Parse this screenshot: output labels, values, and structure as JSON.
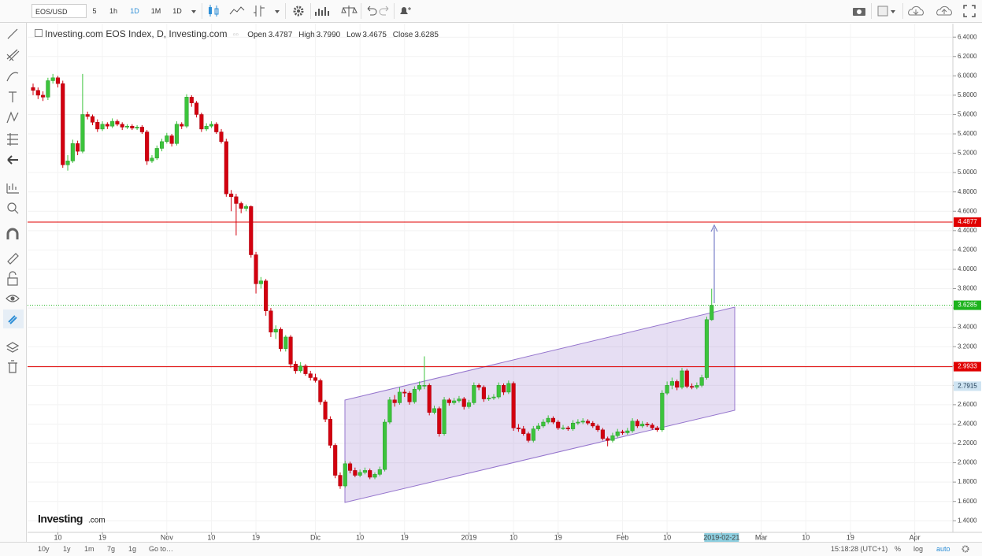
{
  "toolbar": {
    "symbol": "EOS/USD",
    "intervals": [
      "5",
      "1h",
      "1D",
      "1M",
      "1D"
    ]
  },
  "chart_data": {
    "type": "candlestick",
    "title": "Investing.com EOS Index, D, Investing.com",
    "ohlc_legend": [
      {
        "name": "Open",
        "value": "3.4787"
      },
      {
        "name": "High",
        "value": "3.7990"
      },
      {
        "name": "Low",
        "value": "3.4675"
      },
      {
        "name": "Close",
        "value": "3.6285"
      }
    ],
    "watermark": [
      "Investing",
      ".com"
    ],
    "up_color": "#3cc43c",
    "down_color": "#d3000f",
    "grid": true,
    "ylim": [
      1.28,
      6.54
    ],
    "yticks": [
      {
        "value": 1.4,
        "label": "1.4000"
      },
      {
        "value": 1.6,
        "label": "1.6000"
      },
      {
        "value": 1.8,
        "label": "1.8000"
      },
      {
        "value": 2.0,
        "label": "2.0000"
      },
      {
        "value": 2.2,
        "label": "2.2000"
      },
      {
        "value": 2.4,
        "label": "2.4000"
      },
      {
        "value": 2.6,
        "label": "2.6000"
      },
      {
        "value": 2.8,
        "label": "2.8000"
      },
      {
        "value": 3.0,
        "label": "3.0000"
      },
      {
        "value": 3.2,
        "label": "3.2000"
      },
      {
        "value": 3.4,
        "label": "3.4000"
      },
      {
        "value": 3.6,
        "label": "3.6000"
      },
      {
        "value": 3.8,
        "label": "3.8000"
      },
      {
        "value": 4.0,
        "label": "4.0000"
      },
      {
        "value": 4.2,
        "label": "4.2000"
      },
      {
        "value": 4.4,
        "label": "4.4000"
      },
      {
        "value": 4.6,
        "label": "4.6000"
      },
      {
        "value": 4.8,
        "label": "4.8000"
      },
      {
        "value": 5.0,
        "label": "5.0000"
      },
      {
        "value": 5.2,
        "label": "5.2000"
      },
      {
        "value": 5.4,
        "label": "5.4000"
      },
      {
        "value": 5.6,
        "label": "5.6000"
      },
      {
        "value": 5.8,
        "label": "5.8000"
      },
      {
        "value": 6.0,
        "label": "6.0000"
      },
      {
        "value": 6.2,
        "label": "6.2000"
      },
      {
        "value": 6.4,
        "label": "6.4000"
      }
    ],
    "price_lines": [
      {
        "value": 4.4877,
        "color": "#e00000",
        "line": "solid"
      },
      {
        "value": 3.6285,
        "color": "#1db31d",
        "line": "dotted"
      },
      {
        "value": 2.9933,
        "color": "#e00000",
        "line": "solid"
      },
      {
        "value": 2.7915,
        "color": "#cfe4f2",
        "line": "none"
      }
    ],
    "categories": [
      null,
      null,
      null,
      null,
      null,
      "10",
      null,
      null,
      null,
      null,
      null,
      null,
      null,
      null,
      "19",
      null,
      null,
      null,
      null,
      null,
      null,
      null,
      null,
      null,
      null,
      null,
      null,
      "Nov",
      null,
      null,
      null,
      null,
      null,
      null,
      null,
      null,
      "10",
      null,
      null,
      null,
      null,
      null,
      null,
      null,
      null,
      "19",
      null,
      null,
      null,
      null,
      null,
      null,
      null,
      null,
      null,
      null,
      null,
      "Dic",
      null,
      null,
      null,
      null,
      null,
      null,
      null,
      null,
      "10",
      null,
      null,
      null,
      null,
      null,
      null,
      null,
      null,
      "19",
      null,
      null,
      null,
      null,
      null,
      null,
      null,
      null,
      null,
      null,
      null,
      null,
      "2019",
      null,
      null,
      null,
      null,
      null,
      null,
      null,
      null,
      "10",
      null,
      null,
      null,
      null,
      null,
      null,
      null,
      null,
      "19",
      null,
      null,
      null,
      null,
      null,
      null,
      null,
      null,
      null,
      null,
      null,
      null,
      "Feb",
      null,
      null,
      null,
      null,
      null,
      null,
      null,
      null,
      "10",
      null,
      null,
      null,
      null,
      null,
      null,
      null,
      null,
      null,
      null,
      "2019-02-21",
      null,
      null,
      null,
      null,
      null,
      null,
      null,
      "Mar",
      null,
      null,
      null,
      null,
      null,
      null,
      null,
      null,
      "10",
      null,
      null,
      null,
      null,
      null,
      null,
      null,
      null,
      "19",
      null,
      null,
      null,
      null,
      null,
      null,
      null,
      null,
      null,
      null,
      null,
      null,
      "Apr",
      null,
      null,
      null,
      null,
      null,
      null,
      null,
      null
    ],
    "candles": [
      [
        5.88,
        5.92,
        5.8,
        5.85
      ],
      [
        5.85,
        5.88,
        5.76,
        5.8
      ],
      [
        5.8,
        5.84,
        5.74,
        5.78
      ],
      [
        5.78,
        5.98,
        5.75,
        5.95
      ],
      [
        5.95,
        6.02,
        5.92,
        5.98
      ],
      [
        5.98,
        6.0,
        5.88,
        5.92
      ],
      [
        5.92,
        5.95,
        5.05,
        5.08
      ],
      [
        5.08,
        5.18,
        5.02,
        5.12
      ],
      [
        5.12,
        5.34,
        5.1,
        5.3
      ],
      [
        5.3,
        5.33,
        5.18,
        5.22
      ],
      [
        5.22,
        6.02,
        5.2,
        5.6
      ],
      [
        5.6,
        5.63,
        5.55,
        5.58
      ],
      [
        5.58,
        5.6,
        5.49,
        5.52
      ],
      [
        5.52,
        5.55,
        5.42,
        5.45
      ],
      [
        5.45,
        5.53,
        5.43,
        5.5
      ],
      [
        5.5,
        5.52,
        5.45,
        5.48
      ],
      [
        5.48,
        5.56,
        5.46,
        5.53
      ],
      [
        5.53,
        5.55,
        5.48,
        5.5
      ],
      [
        5.5,
        5.52,
        5.44,
        5.47
      ],
      [
        5.47,
        5.5,
        5.45,
        5.48
      ],
      [
        5.48,
        5.5,
        5.44,
        5.46
      ],
      [
        5.46,
        5.49,
        5.44,
        5.47
      ],
      [
        5.47,
        5.49,
        5.4,
        5.42
      ],
      [
        5.42,
        5.44,
        5.08,
        5.12
      ],
      [
        5.12,
        5.18,
        5.1,
        5.15
      ],
      [
        5.15,
        5.28,
        5.13,
        5.25
      ],
      [
        5.25,
        5.35,
        5.22,
        5.32
      ],
      [
        5.32,
        5.41,
        5.3,
        5.38
      ],
      [
        5.38,
        5.4,
        5.27,
        5.3
      ],
      [
        5.3,
        5.53,
        5.28,
        5.5
      ],
      [
        5.5,
        5.52,
        5.45,
        5.48
      ],
      [
        5.48,
        5.81,
        5.46,
        5.78
      ],
      [
        5.78,
        5.8,
        5.68,
        5.72
      ],
      [
        5.72,
        5.74,
        5.57,
        5.6
      ],
      [
        5.6,
        5.62,
        5.42,
        5.45
      ],
      [
        5.45,
        5.51,
        5.43,
        5.48
      ],
      [
        5.48,
        5.53,
        5.46,
        5.5
      ],
      [
        5.5,
        5.52,
        5.4,
        5.42
      ],
      [
        5.42,
        5.45,
        5.3,
        5.32
      ],
      [
        5.32,
        5.35,
        4.75,
        4.78
      ],
      [
        4.78,
        4.82,
        4.6,
        4.75
      ],
      [
        4.75,
        4.78,
        4.35,
        4.68
      ],
      [
        4.68,
        4.7,
        4.58,
        4.63
      ],
      [
        4.63,
        4.67,
        4.6,
        4.65
      ],
      [
        4.65,
        4.66,
        4.12,
        4.15
      ],
      [
        4.15,
        4.18,
        3.75,
        3.85
      ],
      [
        3.85,
        3.92,
        3.8,
        3.88
      ],
      [
        3.88,
        3.9,
        3.52,
        3.57
      ],
      [
        3.57,
        3.6,
        3.3,
        3.35
      ],
      [
        3.35,
        3.42,
        3.28,
        3.38
      ],
      [
        3.38,
        3.4,
        3.15,
        3.18
      ],
      [
        3.18,
        3.32,
        3.15,
        3.3
      ],
      [
        3.3,
        3.32,
        2.98,
        3.02
      ],
      [
        3.02,
        3.05,
        2.92,
        2.95
      ],
      [
        2.95,
        3.04,
        2.93,
        3.0
      ],
      [
        3.0,
        3.02,
        2.9,
        2.92
      ],
      [
        2.92,
        2.95,
        2.85,
        2.88
      ],
      [
        2.88,
        2.92,
        2.83,
        2.85
      ],
      [
        2.85,
        2.87,
        2.6,
        2.63
      ],
      [
        2.63,
        2.65,
        2.42,
        2.45
      ],
      [
        2.45,
        2.48,
        2.15,
        2.18
      ],
      [
        2.18,
        2.2,
        1.84,
        1.87
      ],
      [
        1.87,
        1.9,
        1.73,
        1.76
      ],
      [
        1.76,
        2.02,
        1.74,
        1.99
      ],
      [
        1.99,
        2.01,
        1.89,
        1.92
      ],
      [
        1.92,
        1.95,
        1.85,
        1.87
      ],
      [
        1.87,
        1.93,
        1.85,
        1.9
      ],
      [
        1.9,
        1.95,
        1.88,
        1.92
      ],
      [
        1.92,
        1.94,
        1.83,
        1.85
      ],
      [
        1.85,
        1.9,
        1.83,
        1.88
      ],
      [
        1.88,
        1.96,
        1.86,
        1.93
      ],
      [
        1.93,
        2.45,
        1.91,
        2.42
      ],
      [
        2.42,
        2.68,
        2.4,
        2.65
      ],
      [
        2.65,
        2.7,
        2.58,
        2.62
      ],
      [
        2.62,
        2.78,
        2.6,
        2.73
      ],
      [
        2.73,
        2.76,
        2.68,
        2.72
      ],
      [
        2.72,
        2.74,
        2.6,
        2.63
      ],
      [
        2.63,
        2.79,
        2.61,
        2.76
      ],
      [
        2.76,
        2.84,
        2.74,
        2.8
      ],
      [
        2.8,
        3.1,
        2.76,
        2.8
      ],
      [
        2.8,
        2.82,
        2.49,
        2.52
      ],
      [
        2.52,
        2.59,
        2.5,
        2.56
      ],
      [
        2.56,
        2.58,
        2.27,
        2.3
      ],
      [
        2.3,
        2.68,
        2.28,
        2.65
      ],
      [
        2.65,
        2.67,
        2.59,
        2.62
      ],
      [
        2.62,
        2.67,
        2.6,
        2.64
      ],
      [
        2.64,
        2.69,
        2.62,
        2.66
      ],
      [
        2.66,
        2.68,
        2.55,
        2.58
      ],
      [
        2.58,
        2.65,
        2.56,
        2.62
      ],
      [
        2.62,
        2.83,
        2.6,
        2.8
      ],
      [
        2.8,
        2.82,
        2.75,
        2.78
      ],
      [
        2.78,
        2.8,
        2.63,
        2.66
      ],
      [
        2.66,
        2.7,
        2.64,
        2.67
      ],
      [
        2.67,
        2.71,
        2.65,
        2.68
      ],
      [
        2.68,
        2.83,
        2.66,
        2.8
      ],
      [
        2.8,
        2.82,
        2.7,
        2.73
      ],
      [
        2.73,
        2.85,
        2.71,
        2.82
      ],
      [
        2.82,
        2.84,
        2.33,
        2.36
      ],
      [
        2.36,
        2.4,
        2.32,
        2.35
      ],
      [
        2.35,
        2.38,
        2.28,
        2.3
      ],
      [
        2.3,
        2.32,
        2.21,
        2.23
      ],
      [
        2.23,
        2.38,
        2.21,
        2.35
      ],
      [
        2.35,
        2.41,
        2.33,
        2.38
      ],
      [
        2.38,
        2.45,
        2.36,
        2.42
      ],
      [
        2.42,
        2.49,
        2.4,
        2.46
      ],
      [
        2.46,
        2.48,
        2.4,
        2.42
      ],
      [
        2.42,
        2.44,
        2.34,
        2.36
      ],
      [
        2.36,
        2.39,
        2.34,
        2.36
      ],
      [
        2.36,
        2.38,
        2.33,
        2.35
      ],
      [
        2.35,
        2.44,
        2.33,
        2.41
      ],
      [
        2.41,
        2.45,
        2.39,
        2.42
      ],
      [
        2.42,
        2.46,
        2.4,
        2.43
      ],
      [
        2.43,
        2.45,
        2.39,
        2.41
      ],
      [
        2.41,
        2.43,
        2.36,
        2.38
      ],
      [
        2.38,
        2.4,
        2.32,
        2.34
      ],
      [
        2.34,
        2.36,
        2.23,
        2.25
      ],
      [
        2.25,
        2.27,
        2.17,
        2.23
      ],
      [
        2.23,
        2.31,
        2.21,
        2.28
      ],
      [
        2.28,
        2.35,
        2.26,
        2.32
      ],
      [
        2.32,
        2.34,
        2.29,
        2.31
      ],
      [
        2.31,
        2.36,
        2.29,
        2.33
      ],
      [
        2.33,
        2.46,
        2.31,
        2.43
      ],
      [
        2.43,
        2.45,
        2.36,
        2.38
      ],
      [
        2.38,
        2.43,
        2.36,
        2.4
      ],
      [
        2.4,
        2.42,
        2.37,
        2.39
      ],
      [
        2.39,
        2.41,
        2.34,
        2.36
      ],
      [
        2.36,
        2.38,
        2.32,
        2.34
      ],
      [
        2.34,
        2.75,
        2.32,
        2.72
      ],
      [
        2.72,
        2.84,
        2.7,
        2.8
      ],
      [
        2.8,
        2.88,
        2.76,
        2.84
      ],
      [
        2.84,
        2.86,
        2.75,
        2.78
      ],
      [
        2.78,
        2.98,
        2.76,
        2.95
      ],
      [
        2.95,
        2.97,
        2.77,
        2.79
      ],
      [
        2.79,
        2.82,
        2.76,
        2.78
      ],
      [
        2.78,
        2.83,
        2.76,
        2.8
      ],
      [
        2.8,
        2.91,
        2.78,
        2.88
      ],
      [
        2.88,
        3.51,
        2.86,
        3.48
      ],
      [
        3.4787,
        3.799,
        3.4675,
        3.6285
      ],
      null,
      null,
      null,
      null,
      null,
      null,
      null,
      null,
      null,
      null,
      null,
      null,
      null,
      null,
      null,
      null,
      null,
      null,
      null,
      null,
      null,
      null,
      null,
      null,
      null,
      null,
      null,
      null,
      null,
      null,
      null,
      null,
      null,
      null,
      null,
      null,
      null,
      null,
      null,
      null,
      null,
      null,
      null,
      null,
      null,
      null,
      null,
      null,
      null
    ]
  },
  "bottom_bar": {
    "ranges": [
      "10y",
      "1y",
      "1m",
      "7g",
      "1g"
    ],
    "goto": "Go to…",
    "time": "15:18:28 (UTC+1)",
    "scale_buttons": [
      "%",
      "log",
      "auto"
    ]
  }
}
